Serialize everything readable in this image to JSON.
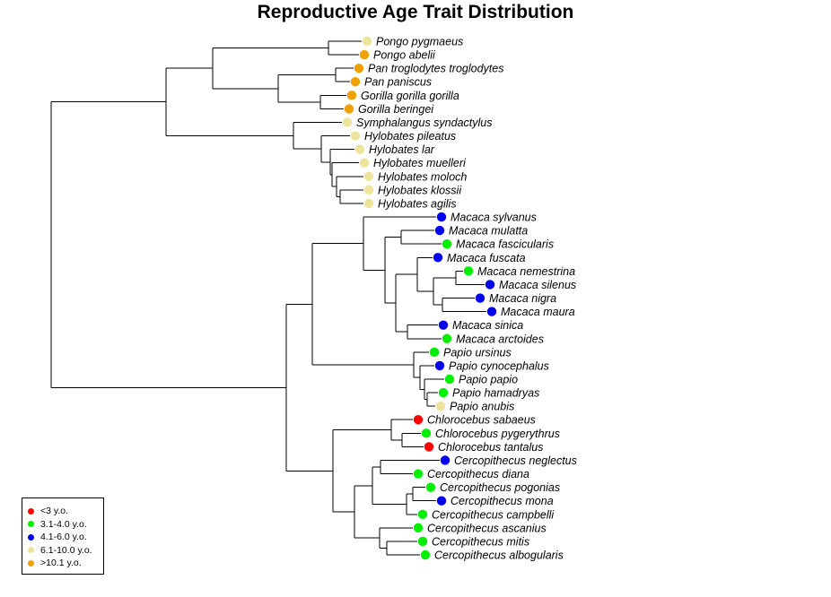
{
  "title": "Reproductive Age Trait Distribution",
  "legend": [
    {
      "label": "<3 y.o.",
      "color": "#ff0000"
    },
    {
      "label": "3.1-4.0 y.o.",
      "color": "#00ee00"
    },
    {
      "label": "4.1-6.0 y.o.",
      "color": "#0000ee"
    },
    {
      "label": "6.1-10.0 y.o.",
      "color": "#eee39a"
    },
    {
      "label": ">10.1 y.o.",
      "color": "#f0a000"
    }
  ],
  "species": [
    {
      "name": "Pongo pygmaeus",
      "category": 3
    },
    {
      "name": "Pongo abelii",
      "category": 4
    },
    {
      "name": "Pan troglodytes troglodytes",
      "category": 4
    },
    {
      "name": "Pan paniscus",
      "category": 4
    },
    {
      "name": "Gorilla gorilla gorilla",
      "category": 4
    },
    {
      "name": "Gorilla beringei",
      "category": 4
    },
    {
      "name": "Symphalangus syndactylus",
      "category": 3
    },
    {
      "name": "Hylobates pileatus",
      "category": 3
    },
    {
      "name": "Hylobates lar",
      "category": 3
    },
    {
      "name": "Hylobates muelleri",
      "category": 3
    },
    {
      "name": "Hylobates moloch",
      "category": 3
    },
    {
      "name": "Hylobates klossii",
      "category": 3
    },
    {
      "name": "Hylobates agilis",
      "category": 3
    },
    {
      "name": "Macaca sylvanus",
      "category": 2
    },
    {
      "name": "Macaca mulatta",
      "category": 2
    },
    {
      "name": "Macaca fascicularis",
      "category": 1
    },
    {
      "name": "Macaca fuscata",
      "category": 2
    },
    {
      "name": "Macaca nemestrina",
      "category": 1
    },
    {
      "name": "Macaca silenus",
      "category": 2
    },
    {
      "name": "Macaca nigra",
      "category": 2
    },
    {
      "name": "Macaca maura",
      "category": 2
    },
    {
      "name": "Macaca sinica",
      "category": 2
    },
    {
      "name": "Macaca arctoides",
      "category": 1
    },
    {
      "name": "Papio ursinus",
      "category": 1
    },
    {
      "name": "Papio cynocephalus",
      "category": 2
    },
    {
      "name": "Papio papio",
      "category": 1
    },
    {
      "name": "Papio hamadryas",
      "category": 1
    },
    {
      "name": "Papio anubis",
      "category": 3
    },
    {
      "name": "Chlorocebus sabaeus",
      "category": 0
    },
    {
      "name": "Chlorocebus pygerythrus",
      "category": 1
    },
    {
      "name": "Chlorocebus tantalus",
      "category": 0
    },
    {
      "name": "Cercopithecus neglectus",
      "category": 2
    },
    {
      "name": "Cercopithecus diana",
      "category": 1
    },
    {
      "name": "Cercopithecus pogonias",
      "category": 1
    },
    {
      "name": "Cercopithecus mona",
      "category": 2
    },
    {
      "name": "Cercopithecus campbelli",
      "category": 1
    },
    {
      "name": "Cercopithecus ascanius",
      "category": 1
    },
    {
      "name": "Cercopithecus mitis",
      "category": 1
    },
    {
      "name": "Cercopithecus albogularis",
      "category": 1
    }
  ]
}
